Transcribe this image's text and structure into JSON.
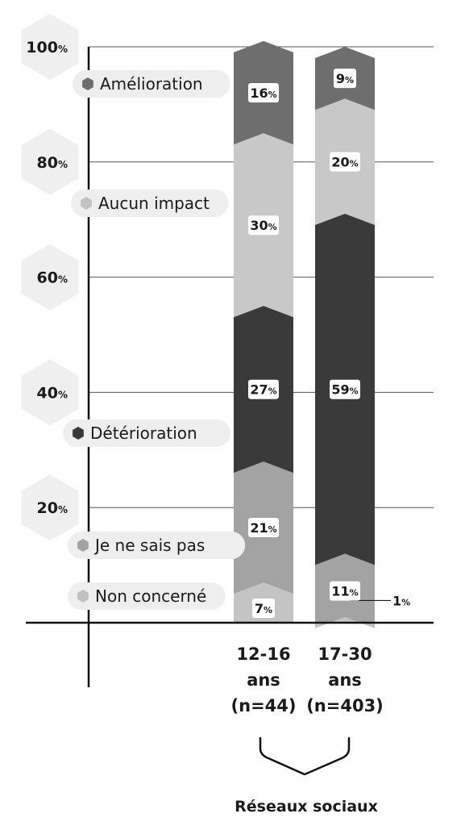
{
  "chart_data": {
    "type": "bar",
    "stacked": true,
    "categories": [
      [
        "12-16",
        "ans",
        "(n=44)"
      ],
      [
        "17-30",
        "ans",
        "(n=403)"
      ]
    ],
    "group_label": "Réseaux sociaux",
    "unit_symbol": "%",
    "ylim": [
      0,
      100
    ],
    "y_ticks": [
      {
        "value": 100,
        "label": "100"
      },
      {
        "value": 80,
        "label": "80"
      },
      {
        "value": 60,
        "label": "60"
      },
      {
        "value": 40,
        "label": "40"
      },
      {
        "value": 20,
        "label": "20"
      }
    ],
    "grid": true,
    "series": [
      {
        "name": "Non concerné",
        "color": "#c4c4c4",
        "values": [
          7,
          1
        ],
        "value_labels": [
          "7",
          "1"
        ]
      },
      {
        "name": "Je ne sais pas",
        "color": "#a3a3a3",
        "values": [
          21,
          11
        ],
        "value_labels": [
          "21",
          "11"
        ]
      },
      {
        "name": "Détérioration",
        "color": "#3a3a3a",
        "values": [
          27,
          59
        ],
        "value_labels": [
          "27",
          "59"
        ]
      },
      {
        "name": "Aucun impact",
        "color": "#c8c8c8",
        "values": [
          30,
          20
        ],
        "value_labels": [
          "30",
          "20"
        ]
      },
      {
        "name": "Amélioration",
        "color": "#6e6e6e",
        "values": [
          16,
          9
        ],
        "value_labels": [
          "16",
          "9"
        ]
      }
    ],
    "legend_placement": "left"
  }
}
